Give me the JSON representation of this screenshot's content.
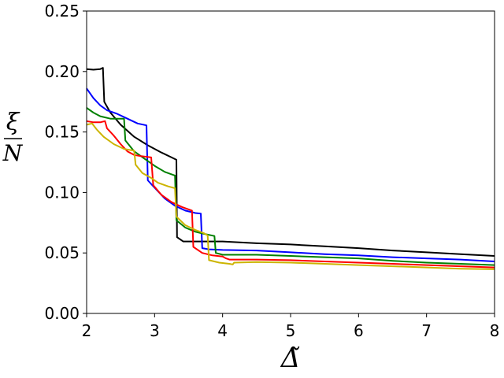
{
  "chart_data": {
    "type": "line",
    "xlabel": "Δ̃",
    "ylabel_num": "ξ",
    "ylabel_den": "N",
    "xlim": [
      2,
      8
    ],
    "ylim": [
      0,
      0.25
    ],
    "xticks": [
      2,
      3,
      4,
      5,
      6,
      7,
      8
    ],
    "yticks": [
      0.0,
      0.05,
      0.1,
      0.15,
      0.2,
      0.25
    ],
    "xtick_labels": [
      "2",
      "3",
      "4",
      "5",
      "6",
      "7",
      "8"
    ],
    "ytick_labels": [
      "0.00",
      "0.05",
      "0.10",
      "0.15",
      "0.20",
      "0.25"
    ],
    "grid": false,
    "series": [
      {
        "color": "#000000",
        "points": [
          [
            2.0,
            0.202
          ],
          [
            2.1,
            0.2015
          ],
          [
            2.2,
            0.202
          ],
          [
            2.24,
            0.203
          ],
          [
            2.26,
            0.175
          ],
          [
            2.35,
            0.166
          ],
          [
            2.5,
            0.156
          ],
          [
            2.7,
            0.146
          ],
          [
            2.9,
            0.139
          ],
          [
            3.1,
            0.133
          ],
          [
            3.25,
            0.129
          ],
          [
            3.32,
            0.127
          ],
          [
            3.33,
            0.063
          ],
          [
            3.42,
            0.0595
          ],
          [
            3.6,
            0.0595
          ],
          [
            3.7,
            0.0595
          ],
          [
            4.0,
            0.0595
          ],
          [
            4.5,
            0.058
          ],
          [
            5.0,
            0.057
          ],
          [
            5.5,
            0.0555
          ],
          [
            6.0,
            0.054
          ],
          [
            6.5,
            0.052
          ],
          [
            7.0,
            0.0505
          ],
          [
            7.5,
            0.049
          ],
          [
            8.0,
            0.0475
          ]
        ]
      },
      {
        "color": "#0000ff",
        "points": [
          [
            2.0,
            0.186
          ],
          [
            2.1,
            0.178
          ],
          [
            2.2,
            0.172
          ],
          [
            2.3,
            0.168
          ],
          [
            2.45,
            0.165
          ],
          [
            2.6,
            0.161
          ],
          [
            2.75,
            0.157
          ],
          [
            2.88,
            0.1555
          ],
          [
            2.9,
            0.11
          ],
          [
            3.0,
            0.104
          ],
          [
            3.15,
            0.095
          ],
          [
            3.3,
            0.089
          ],
          [
            3.45,
            0.085
          ],
          [
            3.6,
            0.083
          ],
          [
            3.68,
            0.0825
          ],
          [
            3.7,
            0.054
          ],
          [
            3.8,
            0.053
          ],
          [
            4.0,
            0.0525
          ],
          [
            4.5,
            0.052
          ],
          [
            5.0,
            0.0505
          ],
          [
            5.5,
            0.049
          ],
          [
            6.0,
            0.048
          ],
          [
            6.5,
            0.0465
          ],
          [
            7.0,
            0.0455
          ],
          [
            7.5,
            0.0445
          ],
          [
            8.0,
            0.043
          ]
        ]
      },
      {
        "color": "#008000",
        "points": [
          [
            2.0,
            0.17
          ],
          [
            2.1,
            0.166
          ],
          [
            2.2,
            0.163
          ],
          [
            2.35,
            0.161
          ],
          [
            2.5,
            0.161
          ],
          [
            2.55,
            0.161
          ],
          [
            2.57,
            0.143
          ],
          [
            2.7,
            0.134
          ],
          [
            2.85,
            0.128
          ],
          [
            3.0,
            0.122
          ],
          [
            3.15,
            0.117
          ],
          [
            3.3,
            0.114
          ],
          [
            3.32,
            0.077
          ],
          [
            3.45,
            0.071
          ],
          [
            3.6,
            0.0675
          ],
          [
            3.75,
            0.0655
          ],
          [
            3.88,
            0.064
          ],
          [
            3.9,
            0.05
          ],
          [
            4.0,
            0.0485
          ],
          [
            4.5,
            0.0485
          ],
          [
            5.0,
            0.0475
          ],
          [
            5.5,
            0.0465
          ],
          [
            6.0,
            0.0455
          ],
          [
            6.5,
            0.0435
          ],
          [
            7.0,
            0.042
          ],
          [
            7.5,
            0.041
          ],
          [
            8.0,
            0.04
          ]
        ]
      },
      {
        "color": "#ff0000",
        "points": [
          [
            2.0,
            0.159
          ],
          [
            2.1,
            0.158
          ],
          [
            2.2,
            0.158
          ],
          [
            2.27,
            0.159
          ],
          [
            2.3,
            0.153
          ],
          [
            2.4,
            0.147
          ],
          [
            2.5,
            0.14
          ],
          [
            2.6,
            0.134
          ],
          [
            2.7,
            0.131
          ],
          [
            2.8,
            0.13
          ],
          [
            2.95,
            0.129
          ],
          [
            2.98,
            0.106
          ],
          [
            3.1,
            0.098
          ],
          [
            3.25,
            0.092
          ],
          [
            3.4,
            0.088
          ],
          [
            3.55,
            0.085
          ],
          [
            3.57,
            0.055
          ],
          [
            3.7,
            0.05
          ],
          [
            3.85,
            0.048
          ],
          [
            4.0,
            0.047
          ],
          [
            4.05,
            0.0455
          ],
          [
            4.1,
            0.0445
          ],
          [
            4.5,
            0.0445
          ],
          [
            5.0,
            0.044
          ],
          [
            5.5,
            0.043
          ],
          [
            6.0,
            0.042
          ],
          [
            6.5,
            0.041
          ],
          [
            7.0,
            0.04
          ],
          [
            7.5,
            0.039
          ],
          [
            8.0,
            0.038
          ]
        ]
      },
      {
        "color": "#ccb400",
        "points": [
          [
            2.0,
            0.156
          ],
          [
            2.08,
            0.157
          ],
          [
            2.15,
            0.152
          ],
          [
            2.25,
            0.146
          ],
          [
            2.4,
            0.14
          ],
          [
            2.55,
            0.136
          ],
          [
            2.7,
            0.1345
          ],
          [
            2.72,
            0.123
          ],
          [
            2.82,
            0.116
          ],
          [
            2.95,
            0.112
          ],
          [
            3.05,
            0.108
          ],
          [
            3.2,
            0.105
          ],
          [
            3.3,
            0.1035
          ],
          [
            3.32,
            0.08
          ],
          [
            3.45,
            0.073
          ],
          [
            3.6,
            0.069
          ],
          [
            3.72,
            0.0665
          ],
          [
            3.78,
            0.0645
          ],
          [
            3.8,
            0.044
          ],
          [
            3.95,
            0.042
          ],
          [
            4.1,
            0.041
          ],
          [
            4.15,
            0.0405
          ],
          [
            4.17,
            0.042
          ],
          [
            4.5,
            0.0425
          ],
          [
            5.0,
            0.042
          ],
          [
            5.5,
            0.041
          ],
          [
            6.0,
            0.04
          ],
          [
            6.5,
            0.039
          ],
          [
            7.0,
            0.038
          ],
          [
            7.5,
            0.037
          ],
          [
            8.0,
            0.0365
          ]
        ]
      }
    ]
  }
}
